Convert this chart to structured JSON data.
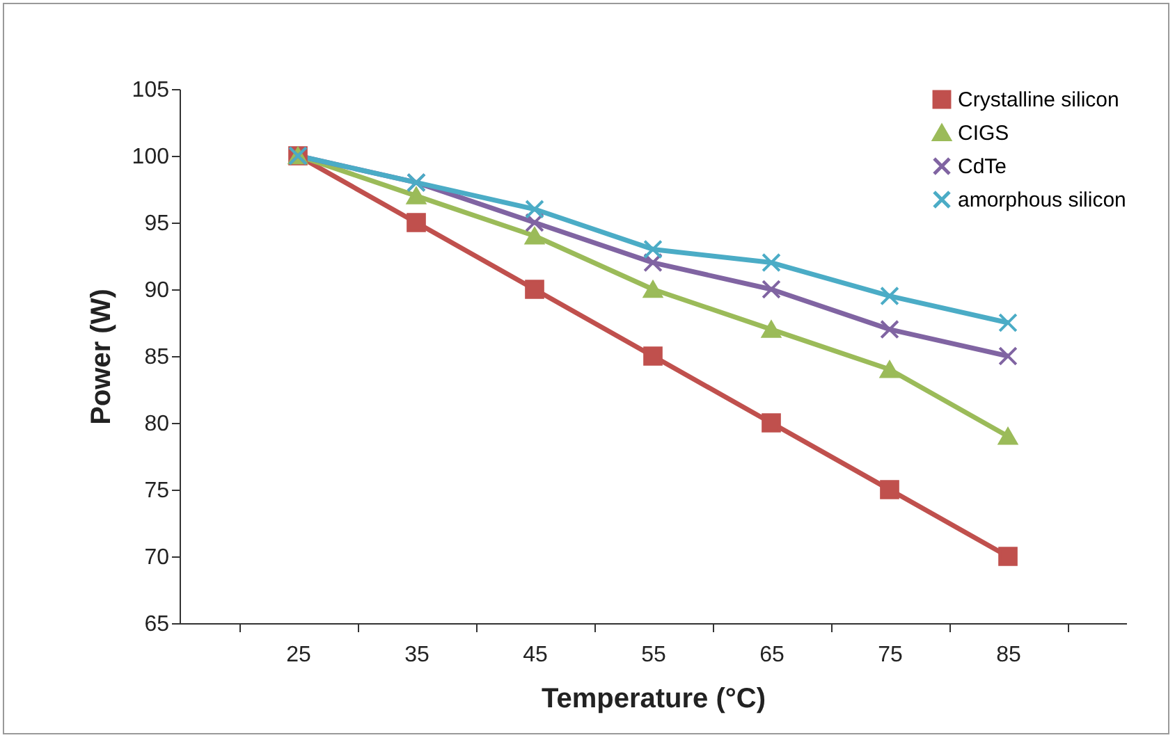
{
  "chart_data": {
    "type": "line",
    "xlabel": "Temperature (°C)",
    "ylabel": "Power (W)",
    "categories": [
      "25",
      "35",
      "45",
      "55",
      "65",
      "75",
      "85"
    ],
    "ylim": [
      65,
      105
    ],
    "yticks": [
      65,
      70,
      75,
      80,
      85,
      90,
      95,
      100,
      105
    ],
    "grid": false,
    "legend": "top right",
    "series": [
      {
        "name": "Crystalline silicon",
        "color": "#c0504d",
        "marker": "square",
        "values": [
          100,
          95,
          90,
          85,
          80,
          75,
          70
        ]
      },
      {
        "name": "CIGS",
        "color": "#9bbb59",
        "marker": "triangle",
        "values": [
          100,
          97,
          94,
          90,
          87,
          84,
          79
        ]
      },
      {
        "name": "CdTe",
        "color": "#8064a2",
        "marker": "cross",
        "values": [
          100,
          98,
          95,
          92,
          90,
          87,
          85
        ]
      },
      {
        "name": "amorphous silicon",
        "color": "#4bacc6",
        "marker": "cross",
        "values": [
          100,
          98,
          96,
          93,
          92,
          89.5,
          87.5
        ]
      }
    ]
  }
}
